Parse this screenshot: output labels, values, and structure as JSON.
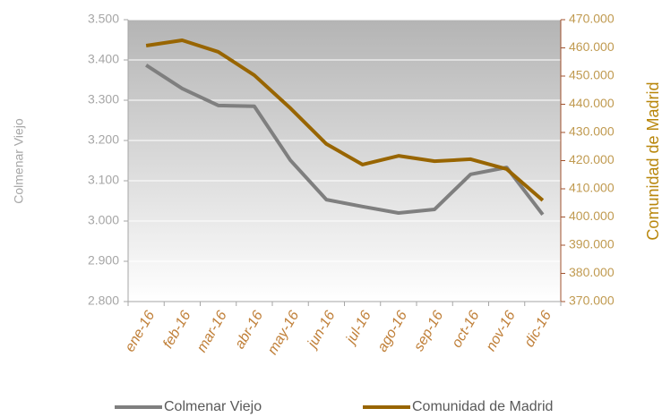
{
  "chart_data": {
    "type": "line",
    "categories": [
      "ene-16",
      "feb-16",
      "mar-16",
      "abr-16",
      "may-16",
      "jun-16",
      "jul-16",
      "ago-16",
      "sep-16",
      "oct-16",
      "nov-16",
      "dic-16"
    ],
    "series": [
      {
        "name": "Colmenar Viejo",
        "color": "#7f7f7f",
        "values": [
          3387,
          3329,
          3287,
          3285,
          3151,
          3053,
          3036,
          3020,
          3029,
          3116,
          3133,
          3016
        ]
      },
      {
        "name": "Comunidad de Madrid",
        "color": "#986500",
        "axis": "y2",
        "values": [
          460800,
          462700,
          458600,
          450300,
          438600,
          425900,
          418600,
          421700,
          419800,
          420500,
          417000,
          405900
        ]
      }
    ],
    "ylabel": "Colmenar Viejo",
    "y2label": "Comunidad de Madrid",
    "ylim": [
      2800,
      3500
    ],
    "yticks": [
      {
        "value": 2800,
        "label": "2.800"
      },
      {
        "value": 2900,
        "label": "2.900"
      },
      {
        "value": 3000,
        "label": "3.000"
      },
      {
        "value": 3100,
        "label": "3.100"
      },
      {
        "value": 3200,
        "label": "3.200"
      },
      {
        "value": 3300,
        "label": "3.300"
      },
      {
        "value": 3400,
        "label": "3.400"
      },
      {
        "value": 3500,
        "label": "3.500"
      }
    ],
    "y2lim": [
      370000,
      470000
    ],
    "y2ticks": [
      {
        "value": 370000,
        "label": "370.000"
      },
      {
        "value": 380000,
        "label": "380.000"
      },
      {
        "value": 390000,
        "label": "390.000"
      },
      {
        "value": 400000,
        "label": "400.000"
      },
      {
        "value": 410000,
        "label": "410.000"
      },
      {
        "value": 420000,
        "label": "420.000"
      },
      {
        "value": 430000,
        "label": "430.000"
      },
      {
        "value": 440000,
        "label": "440.000"
      },
      {
        "value": 450000,
        "label": "450.000"
      },
      {
        "value": 460000,
        "label": "460.000"
      },
      {
        "value": 470000,
        "label": "470.000"
      }
    ],
    "grid": true,
    "legend": "bottom"
  }
}
